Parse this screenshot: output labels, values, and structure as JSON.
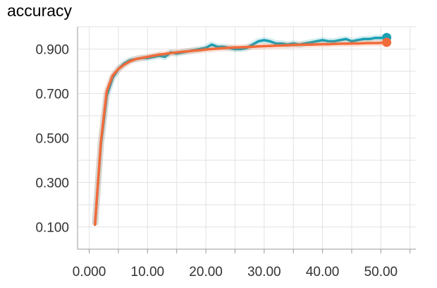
{
  "chart_data": {
    "type": "line",
    "title": "accuracy",
    "xlabel": "",
    "ylabel": "",
    "xlim": [
      -2,
      56
    ],
    "ylim": [
      0.0,
      1.0
    ],
    "x_ticks": [
      "0.000",
      "10.00",
      "20.00",
      "30.00",
      "40.00",
      "50.00"
    ],
    "x_tick_values": [
      0,
      10,
      20,
      30,
      40,
      50
    ],
    "y_ticks": [
      "0.100",
      "0.300",
      "0.500",
      "0.700",
      "0.900"
    ],
    "y_tick_values": [
      0.1,
      0.3,
      0.5,
      0.7,
      0.9
    ],
    "grid": true,
    "series": [
      {
        "color": "#1aa0b4",
        "x": [
          1,
          2,
          3,
          4,
          5,
          6,
          7,
          8,
          9,
          10,
          11,
          12,
          13,
          14,
          15,
          16,
          17,
          18,
          19,
          20,
          21,
          22,
          23,
          24,
          25,
          26,
          27,
          28,
          29,
          30,
          31,
          32,
          33,
          34,
          35,
          36,
          37,
          38,
          39,
          40,
          41,
          42,
          43,
          44,
          45,
          46,
          47,
          48,
          49,
          50,
          51
        ],
        "values": [
          0.11,
          0.47,
          0.69,
          0.77,
          0.81,
          0.835,
          0.85,
          0.855,
          0.86,
          0.86,
          0.865,
          0.87,
          0.865,
          0.885,
          0.88,
          0.885,
          0.89,
          0.895,
          0.9,
          0.905,
          0.92,
          0.91,
          0.91,
          0.905,
          0.9,
          0.9,
          0.905,
          0.92,
          0.935,
          0.94,
          0.935,
          0.925,
          0.925,
          0.92,
          0.925,
          0.92,
          0.925,
          0.93,
          0.935,
          0.94,
          0.935,
          0.935,
          0.94,
          0.945,
          0.935,
          0.94,
          0.945,
          0.945,
          0.95,
          0.95,
          0.952
        ]
      },
      {
        "color": "#f26b3a",
        "x": [
          1,
          2,
          3,
          4,
          5,
          6,
          7,
          8,
          9,
          10,
          11,
          12,
          13,
          14,
          15,
          16,
          17,
          18,
          19,
          20,
          21,
          22,
          23,
          24,
          25,
          26,
          27,
          28,
          29,
          30,
          31,
          32,
          33,
          34,
          35,
          36,
          37,
          38,
          39,
          40,
          41,
          42,
          43,
          44,
          45,
          46,
          47,
          48,
          49,
          50,
          51
        ],
        "values": [
          0.11,
          0.48,
          0.71,
          0.78,
          0.81,
          0.83,
          0.845,
          0.855,
          0.86,
          0.865,
          0.87,
          0.875,
          0.878,
          0.882,
          0.885,
          0.888,
          0.89,
          0.893,
          0.895,
          0.898,
          0.9,
          0.902,
          0.904,
          0.906,
          0.907,
          0.908,
          0.909,
          0.91,
          0.912,
          0.913,
          0.914,
          0.915,
          0.916,
          0.917,
          0.918,
          0.919,
          0.92,
          0.92,
          0.921,
          0.922,
          0.922,
          0.923,
          0.924,
          0.924,
          0.925,
          0.925,
          0.926,
          0.927,
          0.927,
          0.928,
          0.93
        ]
      }
    ]
  }
}
